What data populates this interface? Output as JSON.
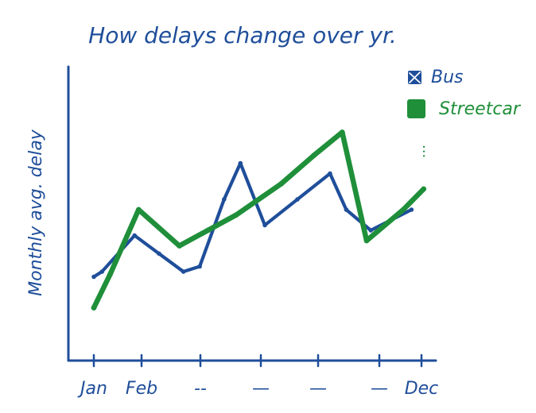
{
  "chart_data": {
    "type": "line",
    "title": "How delays change over yr.",
    "xlabel": "",
    "ylabel": "Monthly avg. delay",
    "x_tick_labels": [
      "Jan",
      "Feb",
      "--",
      "—",
      "—",
      "—",
      "Dec"
    ],
    "legend_position": "top-right",
    "grid": false,
    "x_range": [
      0,
      12
    ],
    "y_range": [
      0,
      100
    ],
    "series": [
      {
        "name": "Bus",
        "color": "#1f4e9a",
        "points": [
          {
            "x": 0,
            "y": 22
          },
          {
            "x": 0.2,
            "y": 24
          },
          {
            "x": 1.0,
            "y": 38
          },
          {
            "x": 1.6,
            "y": 31
          },
          {
            "x": 2.2,
            "y": 24
          },
          {
            "x": 2.6,
            "y": 26
          },
          {
            "x": 3.2,
            "y": 52
          },
          {
            "x": 3.6,
            "y": 66
          },
          {
            "x": 4.2,
            "y": 42
          },
          {
            "x": 5.0,
            "y": 52
          },
          {
            "x": 5.8,
            "y": 62
          },
          {
            "x": 6.2,
            "y": 48
          },
          {
            "x": 6.8,
            "y": 40
          },
          {
            "x": 7.8,
            "y": 48
          }
        ]
      },
      {
        "name": "Streetcar",
        "color": "#1f8f3a",
        "points": [
          {
            "x": 0,
            "y": 10
          },
          {
            "x": 0.4,
            "y": 23
          },
          {
            "x": 1.1,
            "y": 48
          },
          {
            "x": 2.1,
            "y": 34
          },
          {
            "x": 2.8,
            "y": 40
          },
          {
            "x": 3.5,
            "y": 46
          },
          {
            "x": 4.6,
            "y": 58
          },
          {
            "x": 5.4,
            "y": 69
          },
          {
            "x": 6.1,
            "y": 78
          },
          {
            "x": 6.7,
            "y": 36
          },
          {
            "x": 7.6,
            "y": 48
          },
          {
            "x": 8.1,
            "y": 56
          }
        ]
      }
    ],
    "annotations": [
      "..."
    ]
  }
}
